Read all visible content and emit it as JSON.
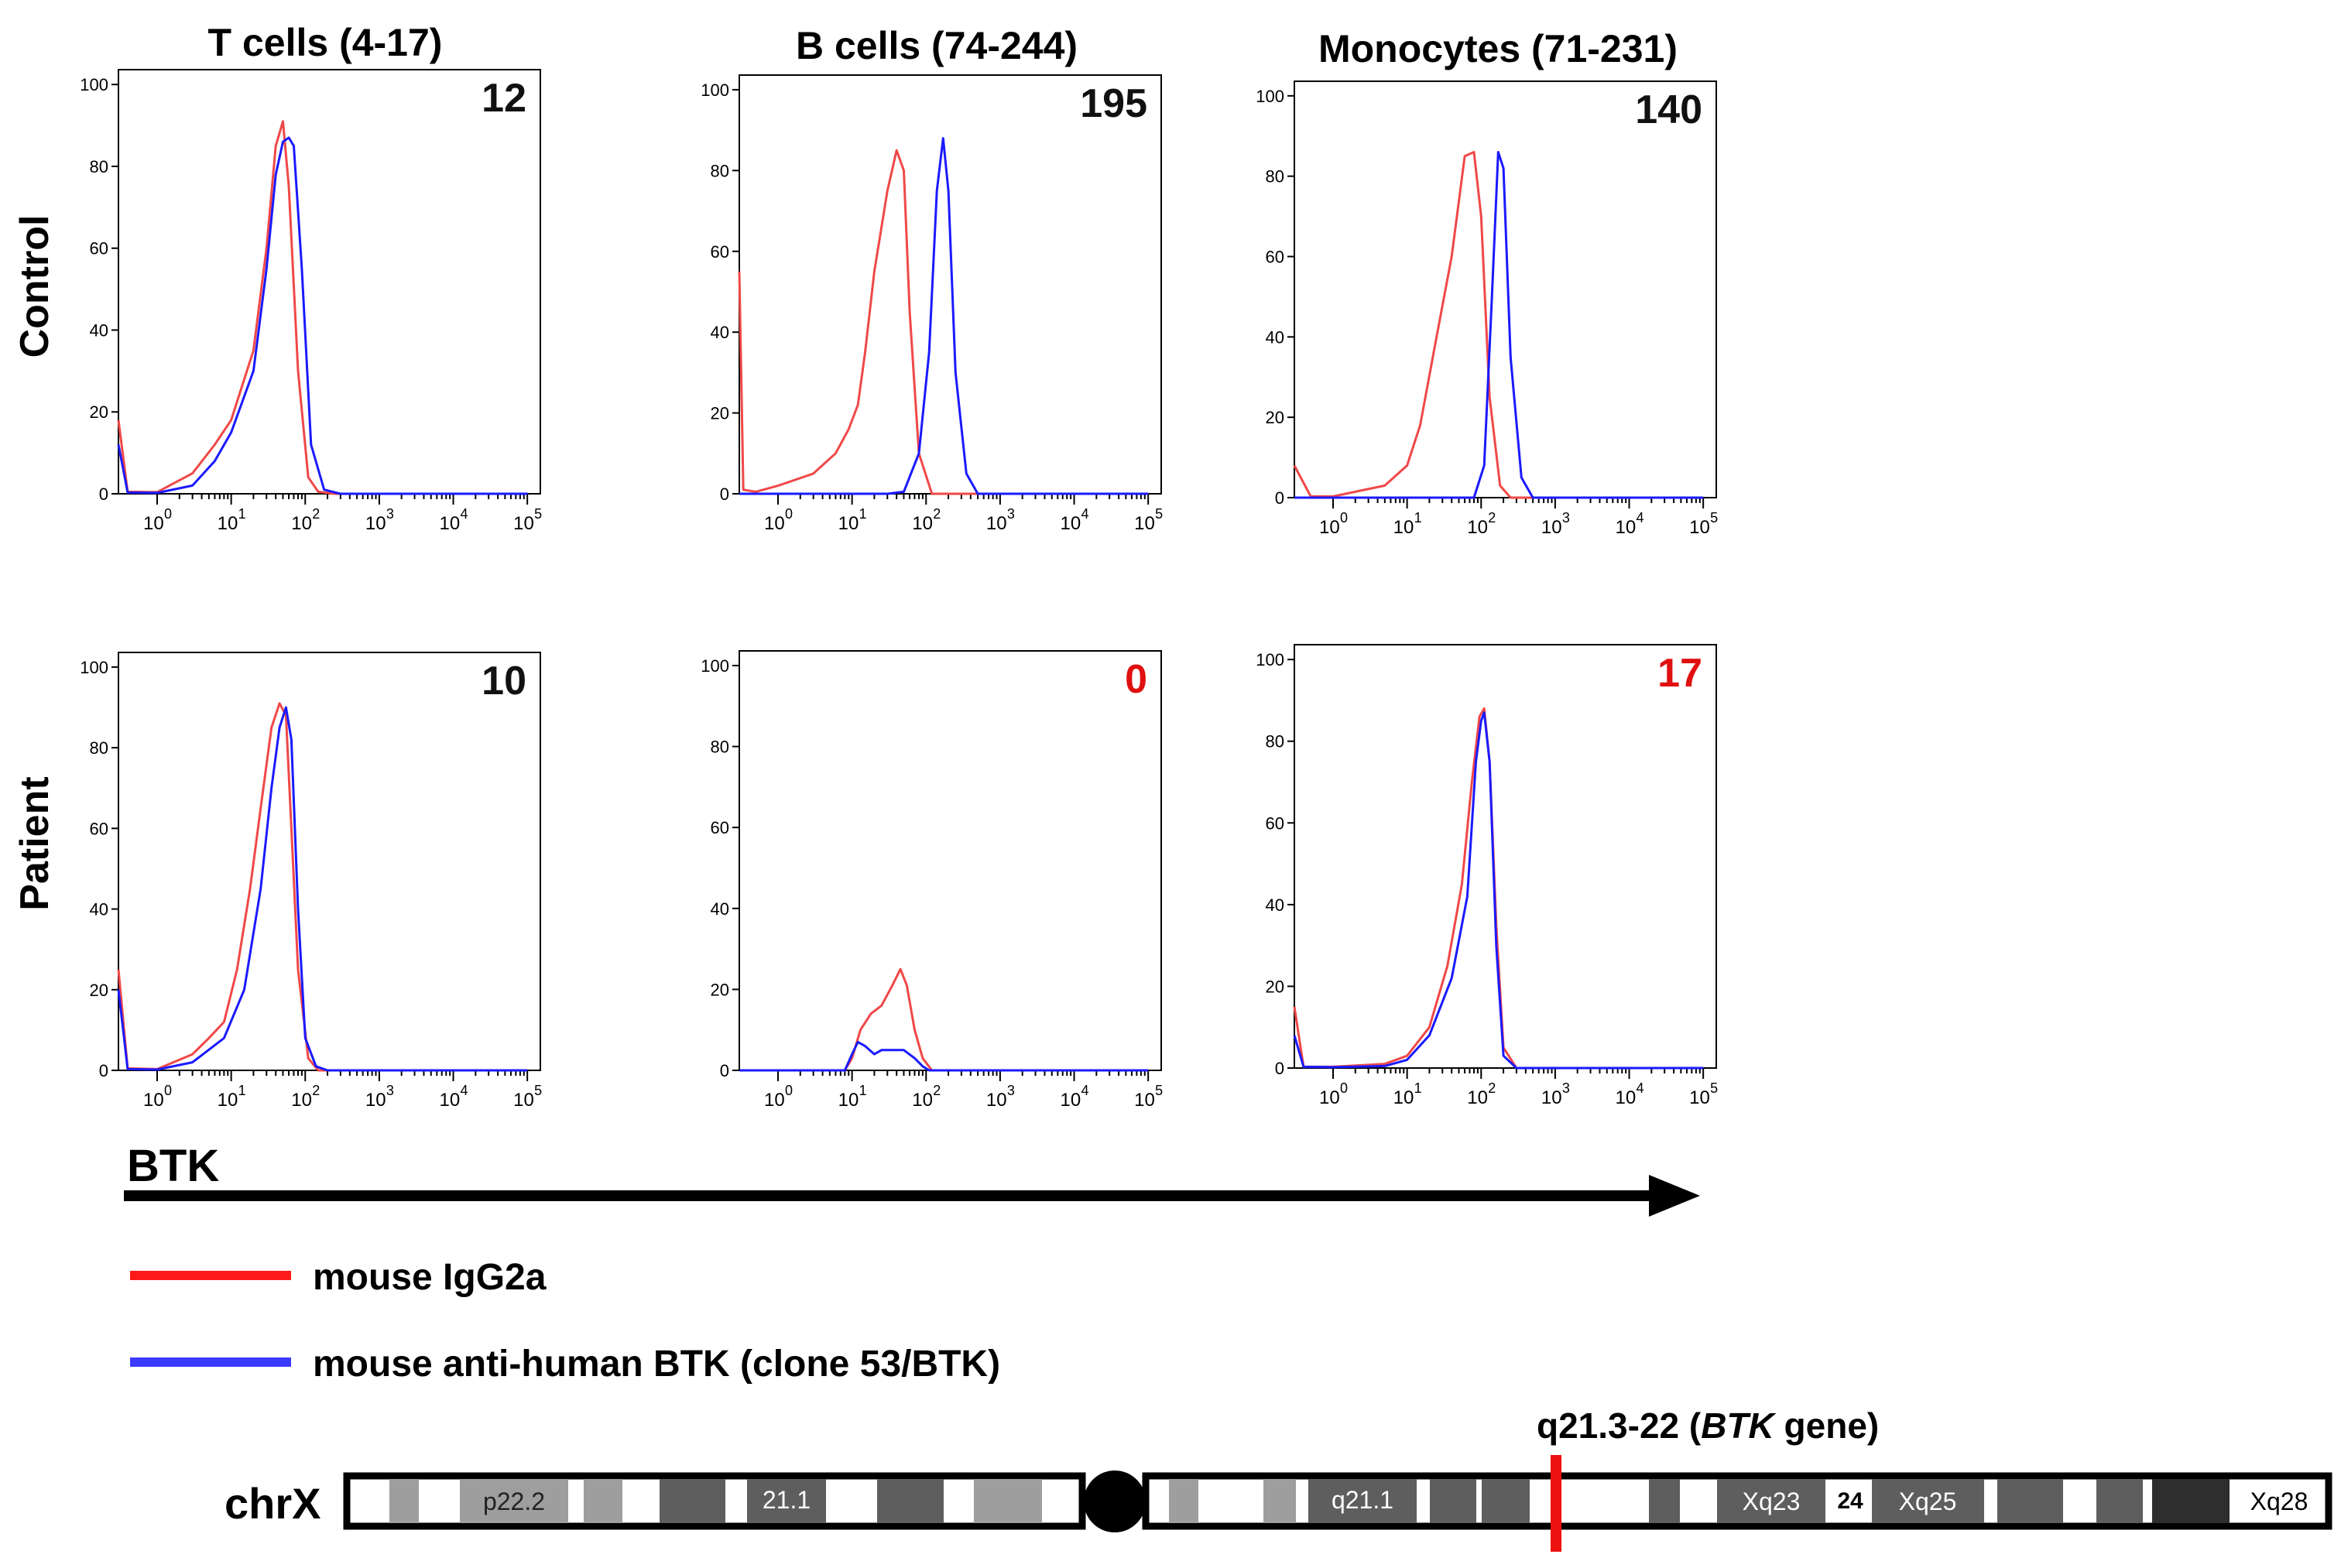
{
  "columns": [
    "T cells (4-17)",
    "B cells (74-244)",
    "Monocytes (71-231)"
  ],
  "rows": [
    "Control",
    "Patient"
  ],
  "axis": {
    "x_scale": "log",
    "x_ticks": [
      {
        "base": "10",
        "exp": "0"
      },
      {
        "base": "10",
        "exp": "1"
      },
      {
        "base": "10",
        "exp": "2"
      },
      {
        "base": "10",
        "exp": "3"
      },
      {
        "base": "10",
        "exp": "4"
      },
      {
        "base": "10",
        "exp": "5"
      }
    ],
    "y_ticks": [
      "0",
      "20",
      "40",
      "60",
      "80",
      "100"
    ],
    "xlim": [
      0.3,
      150000
    ],
    "ylim": [
      0,
      100
    ],
    "grid": false
  },
  "btk_label": "BTK",
  "legend": {
    "placement": "bottom-left",
    "items": [
      {
        "label": "mouse IgG2a",
        "color": "#ff1a1a"
      },
      {
        "label": "mouse anti-human BTK (clone 53/BTK)",
        "color": "#3a3aff"
      }
    ]
  },
  "colors": {
    "igg_line": "#f04848",
    "btk_line": "#1a1aff",
    "value_normal": "#111111",
    "value_abnormal": "#e01010",
    "locus_marker": "#ee1111"
  },
  "chromosome": {
    "label": "chrX",
    "locus_prefix": "q21.3-22 (",
    "locus_gene": "BTK",
    "locus_suffix": " gene)",
    "band_labels": [
      "p22.2",
      "21.1",
      "q21.1",
      "Xq23",
      "24",
      "Xq25",
      "Xq28"
    ]
  },
  "chart_data": [
    {
      "type": "line",
      "row": "Control",
      "column": "T cells (4-17)",
      "value": "12",
      "value_flag": "normal",
      "series": [
        {
          "name": "mouse IgG2a",
          "x": [
            0.3,
            0.4,
            1,
            3,
            6,
            10,
            20,
            30,
            40,
            50,
            60,
            80,
            110,
            150,
            250,
            1000,
            100000
          ],
          "y": [
            18,
            0.5,
            0.4,
            5,
            12,
            18,
            35,
            60,
            85,
            91,
            75,
            30,
            4,
            0.5,
            0,
            0,
            0
          ]
        },
        {
          "name": "mouse anti-human BTK (clone 53/BTK)",
          "x": [
            0.3,
            0.4,
            1,
            3,
            6,
            10,
            20,
            30,
            40,
            50,
            60,
            70,
            90,
            120,
            180,
            300,
            1000,
            100000
          ],
          "y": [
            12,
            0.3,
            0.2,
            2,
            8,
            15,
            30,
            55,
            78,
            86,
            87,
            85,
            55,
            12,
            1,
            0,
            0,
            0
          ]
        }
      ]
    },
    {
      "type": "line",
      "row": "Control",
      "column": "B cells (74-244)",
      "value": "195",
      "value_flag": "normal",
      "series": [
        {
          "name": "mouse IgG2a",
          "x": [
            0.3,
            0.34,
            0.5,
            1,
            3,
            6,
            9,
            12,
            15,
            20,
            30,
            40,
            50,
            60,
            80,
            120,
            100000
          ],
          "y": [
            55,
            1,
            0.5,
            2,
            5,
            10,
            16,
            22,
            35,
            55,
            75,
            85,
            80,
            45,
            10,
            0,
            0
          ]
        },
        {
          "name": "mouse anti-human BTK (clone 53/BTK)",
          "x": [
            0.3,
            30,
            50,
            80,
            110,
            140,
            170,
            200,
            250,
            350,
            500,
            100000
          ],
          "y": [
            0,
            0,
            0.5,
            10,
            35,
            75,
            88,
            75,
            30,
            5,
            0,
            0
          ]
        }
      ]
    },
    {
      "type": "line",
      "row": "Control",
      "column": "Monocytes (71-231)",
      "value": "140",
      "value_flag": "normal",
      "series": [
        {
          "name": "mouse IgG2a",
          "x": [
            0.3,
            0.5,
            1,
            5,
            10,
            15,
            25,
            40,
            60,
            80,
            100,
            130,
            180,
            250,
            400,
            100000
          ],
          "y": [
            8,
            0.3,
            0.3,
            3,
            8,
            18,
            40,
            60,
            85,
            86,
            70,
            25,
            3,
            0,
            0,
            0
          ]
        },
        {
          "name": "mouse anti-human BTK (clone 53/BTK)",
          "x": [
            0.3,
            80,
            110,
            140,
            170,
            200,
            250,
            350,
            500,
            100000
          ],
          "y": [
            0,
            0,
            8,
            50,
            86,
            82,
            35,
            5,
            0,
            0
          ]
        }
      ]
    },
    {
      "type": "line",
      "row": "Patient",
      "column": "T cells (4-17)",
      "value": "10",
      "value_flag": "normal",
      "series": [
        {
          "name": "mouse IgG2a",
          "x": [
            0.3,
            0.4,
            1,
            3,
            5,
            8,
            12,
            18,
            25,
            35,
            45,
            55,
            65,
            80,
            110,
            150,
            200,
            100000
          ],
          "y": [
            25,
            0.5,
            0.3,
            4,
            8,
            12,
            25,
            45,
            65,
            85,
            91,
            88,
            60,
            25,
            3,
            0,
            0,
            0
          ]
        },
        {
          "name": "mouse anti-human BTK (clone 53/BTK)",
          "x": [
            0.3,
            0.4,
            1,
            3,
            8,
            15,
            25,
            35,
            45,
            55,
            65,
            80,
            100,
            140,
            200,
            100000
          ],
          "y": [
            20,
            0.3,
            0.2,
            2,
            8,
            20,
            45,
            70,
            85,
            90,
            82,
            40,
            8,
            1,
            0,
            0
          ]
        }
      ]
    },
    {
      "type": "line",
      "row": "Patient",
      "column": "B cells (74-244)",
      "value": "0",
      "value_flag": "abnormal",
      "series": [
        {
          "name": "mouse IgG2a",
          "x": [
            0.3,
            8,
            10,
            13,
            18,
            25,
            35,
            45,
            55,
            70,
            90,
            120,
            100000
          ],
          "y": [
            0,
            0,
            3,
            10,
            14,
            16,
            21,
            25,
            21,
            10,
            3,
            0,
            0
          ]
        },
        {
          "name": "mouse anti-human BTK (clone 53/BTK)",
          "x": [
            0.3,
            8,
            10,
            12,
            15,
            20,
            25,
            35,
            50,
            70,
            90,
            110,
            100000
          ],
          "y": [
            0,
            0,
            4,
            7,
            6,
            4,
            5,
            5,
            5,
            3,
            1,
            0,
            0
          ]
        }
      ]
    },
    {
      "type": "line",
      "row": "Patient",
      "column": "Monocytes (71-231)",
      "value": "17",
      "value_flag": "abnormal",
      "series": [
        {
          "name": "mouse IgG2a",
          "x": [
            0.3,
            0.4,
            1,
            5,
            10,
            20,
            35,
            55,
            75,
            95,
            110,
            130,
            160,
            200,
            300,
            100000
          ],
          "y": [
            15,
            0.3,
            0.3,
            1,
            3,
            10,
            25,
            45,
            70,
            86,
            88,
            75,
            35,
            5,
            0,
            0
          ]
        },
        {
          "name": "mouse anti-human BTK (clone 53/BTK)",
          "x": [
            0.3,
            0.4,
            1,
            5,
            10,
            20,
            40,
            65,
            85,
            100,
            110,
            130,
            160,
            200,
            300,
            100000
          ],
          "y": [
            8,
            0.3,
            0.2,
            0.5,
            2,
            8,
            22,
            42,
            75,
            85,
            87,
            75,
            30,
            3,
            0,
            0
          ]
        }
      ]
    }
  ]
}
